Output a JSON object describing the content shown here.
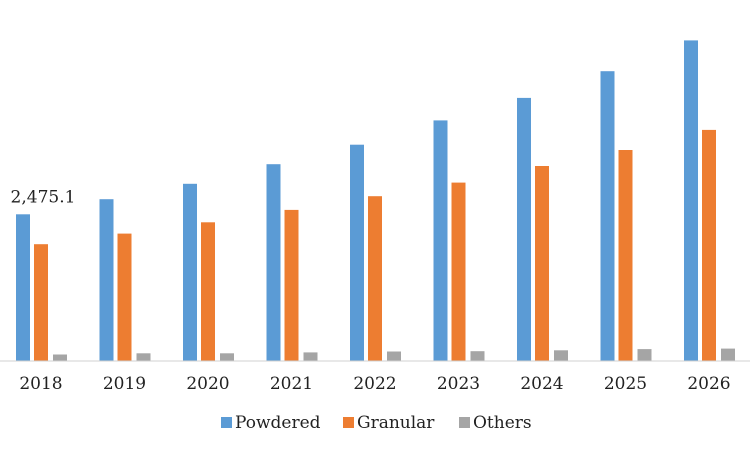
{
  "chart_data": {
    "type": "bar",
    "categories": [
      "2018",
      "2019",
      "2020",
      "2021",
      "2022",
      "2023",
      "2024",
      "2025",
      "2026"
    ],
    "series": [
      {
        "name": "Powdered",
        "color": "#5B9BD5",
        "values": [
          2475.1,
          2730,
          2990,
          3320,
          3650,
          4060,
          4440,
          4890,
          5410
        ]
      },
      {
        "name": "Granular",
        "color": "#ED7D31",
        "values": [
          1970,
          2150,
          2340,
          2550,
          2780,
          3010,
          3290,
          3560,
          3900
        ]
      },
      {
        "name": "Others",
        "color": "#A5A5A5",
        "values": [
          110,
          130,
          130,
          145,
          160,
          165,
          180,
          200,
          210
        ]
      }
    ],
    "data_labels": [
      {
        "series": "Powdered",
        "category": "2018",
        "text": "2,475.1"
      }
    ],
    "ylim": [
      0,
      5450
    ],
    "grid": false,
    "legend_position": "bottom"
  }
}
